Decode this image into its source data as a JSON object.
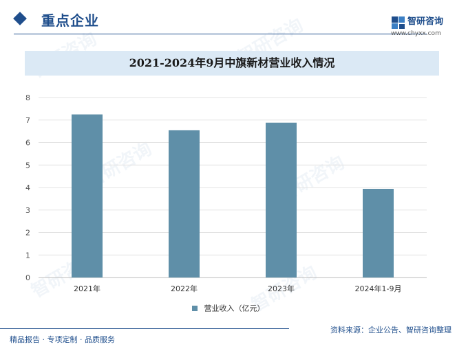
{
  "header": {
    "section_title": "重点企业",
    "logo_name": "智研咨询",
    "logo_url": "www.chyxx.com"
  },
  "colors": {
    "bar": "#5f8fa8",
    "accent": "#1f4e8c",
    "title_band": "#dbe9f5"
  },
  "chart_data": {
    "type": "bar",
    "title": "2021-2024年9月中旗新材营业收入情况",
    "categories": [
      "2021年",
      "2022年",
      "2023年",
      "2024年1-9月"
    ],
    "series": [
      {
        "name": "营业收入（亿元）",
        "values": [
          7.25,
          6.55,
          6.88,
          3.94
        ]
      }
    ],
    "ylim": [
      0,
      8
    ],
    "yticks": [
      0,
      1,
      2,
      3,
      4,
      5,
      6,
      7,
      8
    ],
    "grid": true,
    "legend": "bottom"
  },
  "footer": {
    "tagline": "精品报告 · 专项定制 · 品质服务",
    "source": "资料来源：企业公告、智研咨询整理"
  },
  "watermark": "智研咨询"
}
